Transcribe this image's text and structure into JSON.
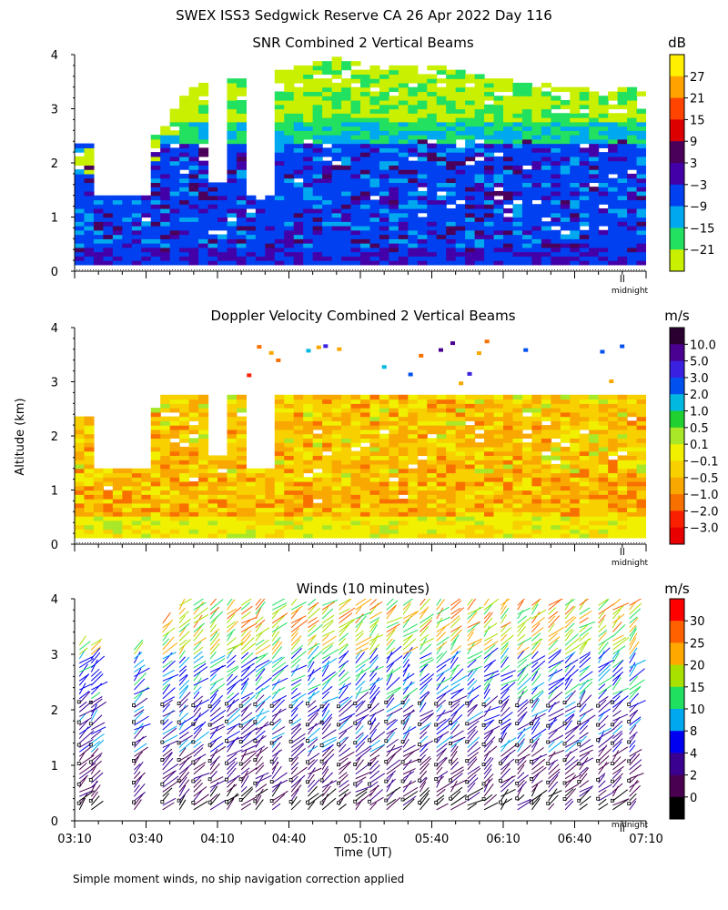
{
  "page_title": "SWEX ISS3 Sedgwick Reserve CA  26 Apr 2022 Day 116",
  "footer_note": "Simple moment winds, no ship navigation correction applied",
  "shared_ylabel": "Altitude (km)",
  "chart_data": [
    {
      "type": "heatmap",
      "title": "SNR Combined 2 Vertical Beams",
      "colorbar_unit": "dB",
      "colorbar_labels": [
        "27",
        "21",
        "15",
        "9",
        "3",
        "−3",
        "−9",
        "−15",
        "−21"
      ],
      "colorbar_colors": [
        "#fef000",
        "#ffa200",
        "#ff4400",
        "#dd0000",
        "#4a005a",
        "#4400a8",
        "#0040f0",
        "#00a8f0",
        "#22e060",
        "#c8f000"
      ],
      "xlim_minutes": [
        0,
        240
      ],
      "ylim": [
        0,
        4
      ],
      "y_ticks": [
        "0",
        "1",
        "2",
        "3",
        "4"
      ],
      "midnight_label": "midnight",
      "data_top_km": [
        2.3,
        2.3,
        2.3,
        2.2,
        2.9,
        3.4,
        3.5,
        3.6,
        3.6,
        3.7,
        3.8,
        3.9,
        3.8,
        3.7,
        3.8,
        3.8,
        3.7,
        3.6,
        3.5,
        3.5,
        3.4,
        3.4,
        3.3,
        3.4,
        3.3
      ],
      "gaps": [
        {
          "start_min": 10,
          "end_min": 32,
          "below_km": 2.3,
          "above_km": 1.4
        },
        {
          "start_min": 58,
          "end_min": 65,
          "below_km": 2.4,
          "above_km": 1.6
        },
        {
          "start_min": 73,
          "end_min": 86,
          "below_km": 3.4,
          "above_km": 1.4
        }
      ]
    },
    {
      "type": "heatmap",
      "title": "Doppler Velocity Combined 2 Vertical Beams",
      "colorbar_unit": "m/s",
      "colorbar_labels": [
        "10.0",
        "5.0",
        "3.0",
        "2.0",
        "1.0",
        "0.5",
        "0.1",
        "−0.1",
        "−0.5",
        "−1.0",
        "−2.0",
        "−3.0"
      ],
      "colorbar_colors": [
        "#2a0030",
        "#4a0090",
        "#3a20e0",
        "#0050f0",
        "#00b8e0",
        "#20d030",
        "#a8e828",
        "#f0f000",
        "#f8d000",
        "#f8a800",
        "#f87000",
        "#f82000",
        "#e80000"
      ],
      "xlim_minutes": [
        0,
        240
      ],
      "ylim": [
        0,
        4
      ],
      "y_ticks": [
        "0",
        "1",
        "2",
        "3",
        "4"
      ],
      "midnight_label": "midnight"
    },
    {
      "type": "scatter",
      "title": "Winds (10 minutes)",
      "colorbar_unit": "m/s",
      "colorbar_labels": [
        "30",
        "25",
        "20",
        "15",
        "10",
        "8",
        "4",
        "2",
        "0"
      ],
      "colorbar_colors": [
        "#ff0000",
        "#ff6000",
        "#ffa800",
        "#a8e000",
        "#20e060",
        "#00a8f0",
        "#0000f0",
        "#3a0090",
        "#4a0050",
        "#000000"
      ],
      "xlim_minutes": [
        0,
        240
      ],
      "ylim": [
        0,
        4
      ],
      "y_ticks": [
        "0",
        "1",
        "2",
        "3",
        "4"
      ],
      "x_ticks": [
        "03:10",
        "03:40",
        "04:10",
        "04:40",
        "05:10",
        "05:40",
        "06:10",
        "06:40",
        "07:10"
      ],
      "xlabel": "Time (UT)",
      "midnight_label": "midnight"
    }
  ]
}
